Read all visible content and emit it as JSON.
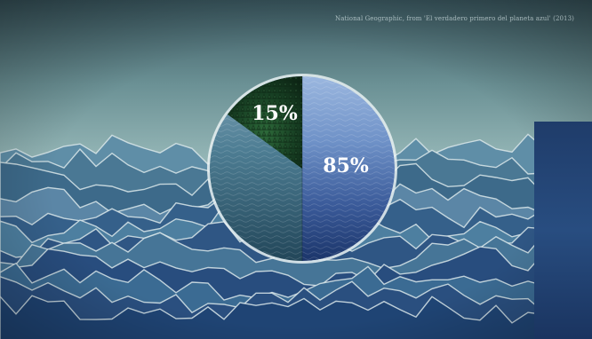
{
  "credit": "National Geographic, from 'El verdadero primero del planeta azul' (2013)",
  "colors": {
    "sky_top": "#3c5a62",
    "sky_mid": "#7ea4a7",
    "sky_low": "#aac8c7",
    "forest": "#1f4a2a",
    "ocean_light": "#7a9fd2",
    "ocean_dark": "#1e3a72",
    "left_water": "#3f6f86",
    "panel": "#213f6e"
  },
  "chart_data": {
    "type": "pie",
    "title": "",
    "slices": [
      {
        "label": "15%",
        "value": 15,
        "texture": "forest"
      },
      {
        "label": "85%",
        "value": 85,
        "texture": "ocean"
      }
    ],
    "start_angle_deg": 0,
    "direction": "counterclockwise-from-12-oclock for first slice"
  }
}
